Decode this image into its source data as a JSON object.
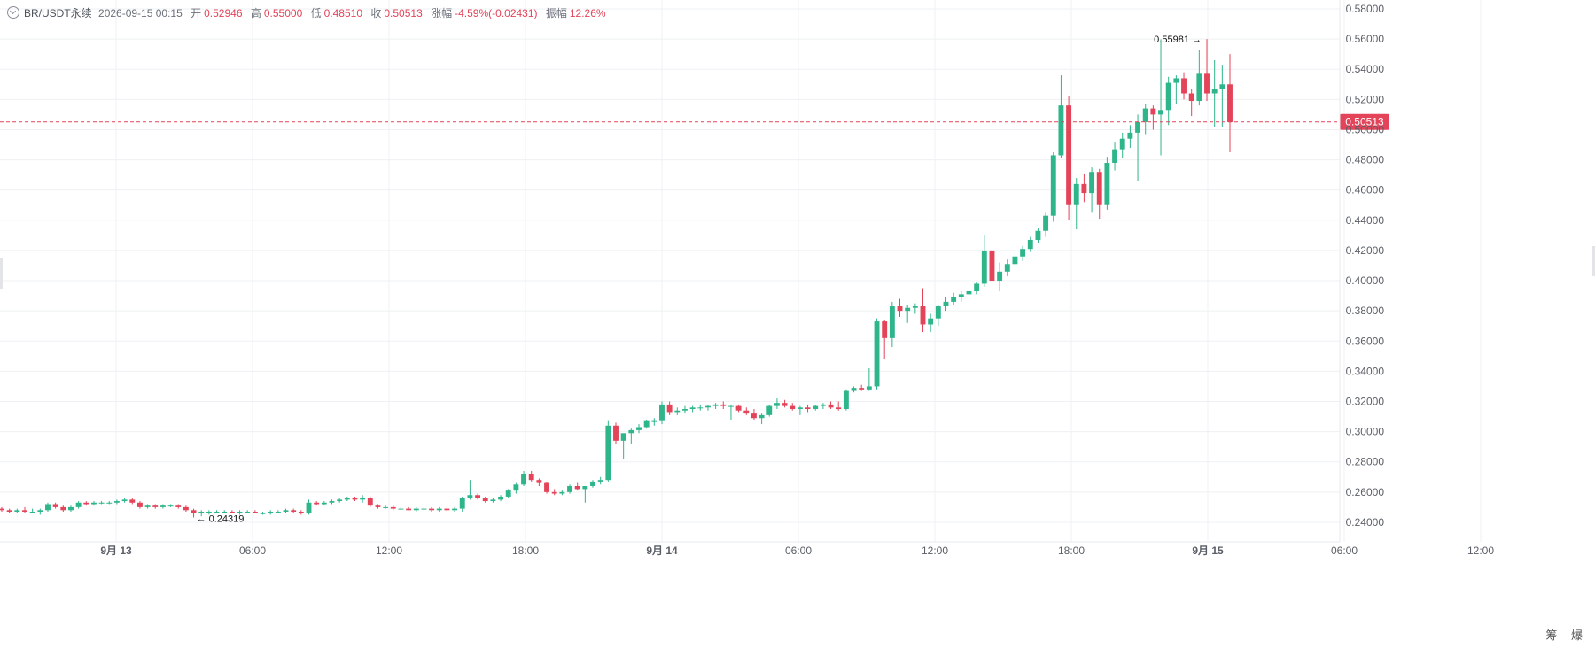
{
  "header": {
    "symbol": "BR/USDT永续",
    "datetime": "2026-09-15 00:15",
    "open_label": "开",
    "open": "0.52946",
    "high_label": "高",
    "high": "0.55000",
    "low_label": "低",
    "low": "0.48510",
    "close_label": "收",
    "close": "0.50513",
    "change_label": "涨幅",
    "change": "-4.59%(-0.02431)",
    "amp_label": "振幅",
    "amp": "12.26%"
  },
  "side_label": "筹 爆",
  "colors": {
    "up": "#2fb58a",
    "down": "#e3445a",
    "grid": "#eef0f3",
    "axis_text": "#5a5e66"
  },
  "chart_data": {
    "type": "candlestick",
    "ylim": [
      0.23,
      0.58
    ],
    "y_ticks": [
      "0.24000",
      "0.26000",
      "0.28000",
      "0.30000",
      "0.32000",
      "0.34000",
      "0.36000",
      "0.38000",
      "0.40000",
      "0.42000",
      "0.44000",
      "0.46000",
      "0.48000",
      "0.50000",
      "0.52000",
      "0.54000",
      "0.56000",
      "0.58000"
    ],
    "x_ticks": [
      "9月 13",
      "06:00",
      "12:00",
      "18:00",
      "9月 14",
      "06:00",
      "12:00",
      "18:00",
      "9月 15",
      "06:00",
      "12:00"
    ],
    "x_tick_bold": [
      true,
      false,
      false,
      false,
      true,
      false,
      false,
      false,
      true,
      false,
      false
    ],
    "current_price": "0.50513",
    "max_marker": "0.55981",
    "min_marker": "0.24319",
    "candles": [
      [
        0.249,
        0.25,
        0.247,
        0.248
      ],
      [
        0.248,
        0.249,
        0.246,
        0.247
      ],
      [
        0.247,
        0.249,
        0.246,
        0.248
      ],
      [
        0.248,
        0.25,
        0.246,
        0.247
      ],
      [
        0.247,
        0.249,
        0.246,
        0.247
      ],
      [
        0.247,
        0.249,
        0.245,
        0.248
      ],
      [
        0.248,
        0.253,
        0.247,
        0.252
      ],
      [
        0.252,
        0.253,
        0.249,
        0.25
      ],
      [
        0.25,
        0.251,
        0.247,
        0.248
      ],
      [
        0.248,
        0.251,
        0.247,
        0.25
      ],
      [
        0.25,
        0.254,
        0.249,
        0.253
      ],
      [
        0.253,
        0.254,
        0.251,
        0.252
      ],
      [
        0.252,
        0.254,
        0.251,
        0.253
      ],
      [
        0.253,
        0.254,
        0.252,
        0.253
      ],
      [
        0.253,
        0.254,
        0.252,
        0.253
      ],
      [
        0.253,
        0.255,
        0.252,
        0.254
      ],
      [
        0.254,
        0.256,
        0.253,
        0.255
      ],
      [
        0.255,
        0.256,
        0.252,
        0.253
      ],
      [
        0.253,
        0.254,
        0.249,
        0.25
      ],
      [
        0.25,
        0.252,
        0.249,
        0.251
      ],
      [
        0.251,
        0.252,
        0.249,
        0.25
      ],
      [
        0.25,
        0.252,
        0.249,
        0.251
      ],
      [
        0.251,
        0.252,
        0.25,
        0.251
      ],
      [
        0.251,
        0.252,
        0.249,
        0.25
      ],
      [
        0.25,
        0.251,
        0.247,
        0.248
      ],
      [
        0.248,
        0.249,
        0.2432,
        0.246
      ],
      [
        0.246,
        0.248,
        0.244,
        0.247
      ],
      [
        0.247,
        0.248,
        0.245,
        0.247
      ],
      [
        0.247,
        0.248,
        0.246,
        0.247
      ],
      [
        0.247,
        0.248,
        0.246,
        0.247
      ],
      [
        0.247,
        0.248,
        0.246,
        0.246
      ],
      [
        0.246,
        0.248,
        0.245,
        0.247
      ],
      [
        0.247,
        0.248,
        0.246,
        0.247
      ],
      [
        0.247,
        0.248,
        0.246,
        0.246
      ],
      [
        0.246,
        0.247,
        0.245,
        0.246
      ],
      [
        0.246,
        0.248,
        0.245,
        0.247
      ],
      [
        0.247,
        0.248,
        0.246,
        0.247
      ],
      [
        0.247,
        0.249,
        0.246,
        0.248
      ],
      [
        0.248,
        0.249,
        0.246,
        0.247
      ],
      [
        0.247,
        0.248,
        0.245,
        0.246
      ],
      [
        0.246,
        0.255,
        0.245,
        0.253
      ],
      [
        0.253,
        0.254,
        0.251,
        0.252
      ],
      [
        0.252,
        0.254,
        0.251,
        0.253
      ],
      [
        0.253,
        0.255,
        0.252,
        0.254
      ],
      [
        0.254,
        0.256,
        0.253,
        0.255
      ],
      [
        0.255,
        0.257,
        0.254,
        0.256
      ],
      [
        0.256,
        0.257,
        0.254,
        0.255
      ],
      [
        0.255,
        0.258,
        0.253,
        0.256
      ],
      [
        0.256,
        0.257,
        0.25,
        0.251
      ],
      [
        0.251,
        0.252,
        0.249,
        0.25
      ],
      [
        0.25,
        0.251,
        0.249,
        0.25
      ],
      [
        0.25,
        0.251,
        0.248,
        0.249
      ],
      [
        0.249,
        0.25,
        0.248,
        0.249
      ],
      [
        0.249,
        0.25,
        0.248,
        0.248
      ],
      [
        0.248,
        0.25,
        0.247,
        0.249
      ],
      [
        0.249,
        0.25,
        0.248,
        0.249
      ],
      [
        0.249,
        0.25,
        0.247,
        0.248
      ],
      [
        0.248,
        0.25,
        0.247,
        0.249
      ],
      [
        0.249,
        0.25,
        0.247,
        0.248
      ],
      [
        0.248,
        0.25,
        0.247,
        0.249
      ],
      [
        0.249,
        0.257,
        0.247,
        0.256
      ],
      [
        0.256,
        0.268,
        0.255,
        0.258
      ],
      [
        0.258,
        0.259,
        0.255,
        0.256
      ],
      [
        0.256,
        0.257,
        0.253,
        0.254
      ],
      [
        0.254,
        0.256,
        0.253,
        0.255
      ],
      [
        0.255,
        0.258,
        0.254,
        0.257
      ],
      [
        0.257,
        0.262,
        0.256,
        0.261
      ],
      [
        0.261,
        0.266,
        0.259,
        0.265
      ],
      [
        0.265,
        0.274,
        0.264,
        0.272
      ],
      [
        0.272,
        0.274,
        0.267,
        0.268
      ],
      [
        0.268,
        0.269,
        0.264,
        0.266
      ],
      [
        0.266,
        0.267,
        0.259,
        0.26
      ],
      [
        0.26,
        0.262,
        0.258,
        0.259
      ],
      [
        0.259,
        0.261,
        0.258,
        0.26
      ],
      [
        0.26,
        0.265,
        0.259,
        0.264
      ],
      [
        0.264,
        0.266,
        0.261,
        0.262
      ],
      [
        0.262,
        0.264,
        0.253,
        0.264
      ],
      [
        0.264,
        0.268,
        0.263,
        0.267
      ],
      [
        0.267,
        0.27,
        0.265,
        0.268
      ],
      [
        0.268,
        0.307,
        0.267,
        0.304
      ],
      [
        0.304,
        0.306,
        0.292,
        0.294
      ],
      [
        0.294,
        0.297,
        0.282,
        0.299
      ],
      [
        0.299,
        0.302,
        0.292,
        0.301
      ],
      [
        0.301,
        0.305,
        0.299,
        0.303
      ],
      [
        0.303,
        0.308,
        0.302,
        0.307
      ],
      [
        0.307,
        0.309,
        0.304,
        0.307
      ],
      [
        0.307,
        0.32,
        0.305,
        0.318
      ],
      [
        0.318,
        0.32,
        0.311,
        0.313
      ],
      [
        0.313,
        0.316,
        0.311,
        0.314
      ],
      [
        0.314,
        0.317,
        0.312,
        0.315
      ],
      [
        0.315,
        0.317,
        0.313,
        0.316
      ],
      [
        0.316,
        0.318,
        0.314,
        0.316
      ],
      [
        0.316,
        0.318,
        0.314,
        0.317
      ],
      [
        0.317,
        0.319,
        0.315,
        0.318
      ],
      [
        0.318,
        0.32,
        0.315,
        0.317
      ],
      [
        0.317,
        0.318,
        0.308,
        0.317
      ],
      [
        0.317,
        0.318,
        0.313,
        0.314
      ],
      [
        0.314,
        0.316,
        0.311,
        0.312
      ],
      [
        0.312,
        0.315,
        0.308,
        0.309
      ],
      [
        0.309,
        0.312,
        0.305,
        0.311
      ],
      [
        0.311,
        0.318,
        0.31,
        0.317
      ],
      [
        0.317,
        0.322,
        0.315,
        0.319
      ],
      [
        0.319,
        0.321,
        0.316,
        0.317
      ],
      [
        0.317,
        0.319,
        0.314,
        0.315
      ],
      [
        0.315,
        0.317,
        0.311,
        0.316
      ],
      [
        0.316,
        0.318,
        0.313,
        0.315
      ],
      [
        0.315,
        0.318,
        0.314,
        0.317
      ],
      [
        0.317,
        0.319,
        0.315,
        0.318
      ],
      [
        0.318,
        0.32,
        0.315,
        0.316
      ],
      [
        0.316,
        0.32,
        0.314,
        0.315
      ],
      [
        0.315,
        0.328,
        0.314,
        0.327
      ],
      [
        0.327,
        0.33,
        0.326,
        0.329
      ],
      [
        0.329,
        0.331,
        0.327,
        0.328
      ],
      [
        0.328,
        0.342,
        0.327,
        0.33
      ],
      [
        0.33,
        0.375,
        0.328,
        0.373
      ],
      [
        0.373,
        0.374,
        0.348,
        0.362
      ],
      [
        0.362,
        0.386,
        0.356,
        0.383
      ],
      [
        0.383,
        0.388,
        0.376,
        0.38
      ],
      [
        0.38,
        0.384,
        0.372,
        0.382
      ],
      [
        0.382,
        0.385,
        0.378,
        0.383
      ],
      [
        0.383,
        0.395,
        0.366,
        0.371
      ],
      [
        0.371,
        0.378,
        0.366,
        0.375
      ],
      [
        0.375,
        0.384,
        0.37,
        0.383
      ],
      [
        0.383,
        0.389,
        0.38,
        0.386
      ],
      [
        0.386,
        0.392,
        0.384,
        0.389
      ],
      [
        0.389,
        0.393,
        0.386,
        0.391
      ],
      [
        0.391,
        0.396,
        0.388,
        0.393
      ],
      [
        0.393,
        0.399,
        0.391,
        0.398
      ],
      [
        0.398,
        0.43,
        0.396,
        0.42
      ],
      [
        0.42,
        0.421,
        0.399,
        0.4
      ],
      [
        0.4,
        0.412,
        0.393,
        0.406
      ],
      [
        0.406,
        0.414,
        0.403,
        0.411
      ],
      [
        0.411,
        0.419,
        0.409,
        0.416
      ],
      [
        0.416,
        0.423,
        0.413,
        0.421
      ],
      [
        0.421,
        0.429,
        0.419,
        0.427
      ],
      [
        0.427,
        0.435,
        0.425,
        0.433
      ],
      [
        0.433,
        0.445,
        0.429,
        0.443
      ],
      [
        0.443,
        0.485,
        0.439,
        0.483
      ],
      [
        0.483,
        0.536,
        0.481,
        0.516
      ],
      [
        0.516,
        0.522,
        0.44,
        0.45
      ],
      [
        0.45,
        0.468,
        0.434,
        0.464
      ],
      [
        0.464,
        0.471,
        0.452,
        0.458
      ],
      [
        0.458,
        0.475,
        0.445,
        0.472
      ],
      [
        0.472,
        0.474,
        0.441,
        0.45
      ],
      [
        0.45,
        0.482,
        0.447,
        0.478
      ],
      [
        0.478,
        0.492,
        0.473,
        0.487
      ],
      [
        0.487,
        0.498,
        0.481,
        0.494
      ],
      [
        0.494,
        0.503,
        0.488,
        0.498
      ],
      [
        0.498,
        0.51,
        0.466,
        0.505
      ],
      [
        0.505,
        0.517,
        0.497,
        0.514
      ],
      [
        0.514,
        0.516,
        0.5,
        0.51
      ],
      [
        0.51,
        0.5598,
        0.483,
        0.513
      ],
      [
        0.513,
        0.535,
        0.503,
        0.531
      ],
      [
        0.531,
        0.536,
        0.517,
        0.534
      ],
      [
        0.534,
        0.538,
        0.52,
        0.524
      ],
      [
        0.524,
        0.527,
        0.509,
        0.519
      ],
      [
        0.519,
        0.553,
        0.516,
        0.537
      ],
      [
        0.537,
        0.56,
        0.519,
        0.524
      ],
      [
        0.524,
        0.546,
        0.502,
        0.527
      ],
      [
        0.527,
        0.543,
        0.502,
        0.53
      ],
      [
        0.53,
        0.55,
        0.485,
        0.505
      ]
    ]
  }
}
